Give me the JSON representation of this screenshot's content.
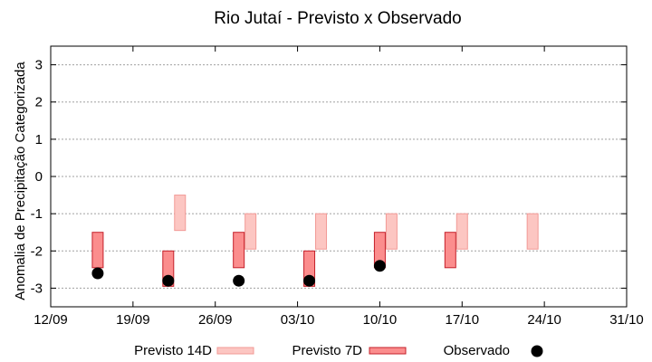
{
  "chart_data": {
    "type": "bar",
    "title": "Rio Jutaí - Previsto x Observado",
    "xlabel": "",
    "ylabel": "Anomalia de Precipitação Categorizada",
    "ylim": [
      -3.5,
      3.5
    ],
    "yticks": [
      3,
      2,
      1,
      0,
      -1,
      -2,
      -3
    ],
    "ytick_labels": [
      "3",
      "2",
      "1",
      "0",
      "-1",
      "-2",
      "-3"
    ],
    "grid": true,
    "legend_position": "bottom",
    "xticks": [
      "12/09",
      "19/09",
      "26/09",
      "03/10",
      "10/10",
      "17/10",
      "24/10",
      "31/10"
    ],
    "xlim_index": [
      0,
      49
    ],
    "series": [
      {
        "name": "Previsto 14D",
        "kind": "floating-bar",
        "fill": "#fcc6c2",
        "stroke": "#f29a96",
        "points": [
          {
            "x_index": 11,
            "low": -1.45,
            "high": -0.5
          },
          {
            "x_index": 17,
            "low": -1.95,
            "high": -1.0
          },
          {
            "x_index": 23,
            "low": -1.95,
            "high": -1.0
          },
          {
            "x_index": 29,
            "low": -1.95,
            "high": -1.0
          },
          {
            "x_index": 35,
            "low": -1.95,
            "high": -1.0
          },
          {
            "x_index": 41,
            "low": -1.95,
            "high": -1.0
          }
        ]
      },
      {
        "name": "Previsto 7D",
        "kind": "floating-bar",
        "fill": "#fb8d8d",
        "stroke": "#c4202a",
        "points": [
          {
            "x_index": 4,
            "low": -2.45,
            "high": -1.5
          },
          {
            "x_index": 10,
            "low": -2.95,
            "high": -2.0
          },
          {
            "x_index": 16,
            "low": -2.45,
            "high": -1.5
          },
          {
            "x_index": 22,
            "low": -2.95,
            "high": -2.0
          },
          {
            "x_index": 28,
            "low": -2.45,
            "high": -1.5
          },
          {
            "x_index": 34,
            "low": -2.45,
            "high": -1.5
          }
        ]
      },
      {
        "name": "Observado",
        "kind": "scatter",
        "color": "#000000",
        "points": [
          {
            "x_index": 4,
            "y": -2.6
          },
          {
            "x_index": 10,
            "y": -2.8
          },
          {
            "x_index": 16,
            "y": -2.8
          },
          {
            "x_index": 22,
            "y": -2.8
          },
          {
            "x_index": 28,
            "y": -2.4
          }
        ]
      }
    ]
  }
}
